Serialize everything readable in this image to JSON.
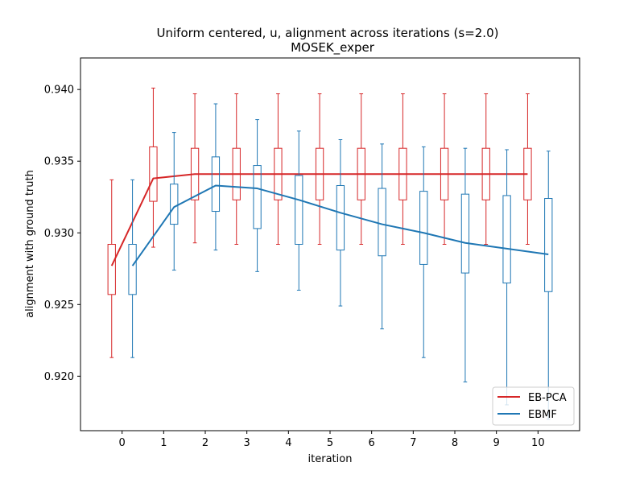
{
  "chart_data": {
    "type": "box",
    "title": "Uniform centered, u, alignment across iterations (s=2.0)",
    "subtitle": "MOSEK_exper",
    "xlabel": "iteration",
    "ylabel": "alignment with ground truth",
    "xlim": [
      -1,
      11
    ],
    "ylim": [
      0.9162,
      0.9422
    ],
    "x_ticks": [
      0,
      1,
      2,
      3,
      4,
      5,
      6,
      7,
      8,
      9,
      10
    ],
    "x_tick_labels": [
      "0",
      "1",
      "2",
      "3",
      "4",
      "5",
      "6",
      "7",
      "8",
      "9",
      "10"
    ],
    "y_ticks": [
      0.92,
      0.925,
      0.93,
      0.935,
      0.94
    ],
    "y_tick_labels": [
      "0.920",
      "0.925",
      "0.930",
      "0.935",
      "0.940"
    ],
    "grid": false,
    "legend_position": "lower-right",
    "series": [
      {
        "name": "EB-PCA",
        "color": "#d62728",
        "offset": -0.25,
        "boxes": [
          {
            "x": 0,
            "whisker_low": 0.9213,
            "q1": 0.9257,
            "q3": 0.9292,
            "whisker_high": 0.9337,
            "mean": 0.9277
          },
          {
            "x": 1,
            "whisker_low": 0.929,
            "q1": 0.9322,
            "q3": 0.936,
            "whisker_high": 0.9401,
            "mean": 0.9338
          },
          {
            "x": 2,
            "whisker_low": 0.9293,
            "q1": 0.9323,
            "q3": 0.9359,
            "whisker_high": 0.9397,
            "mean": 0.9341
          },
          {
            "x": 3,
            "whisker_low": 0.9292,
            "q1": 0.9323,
            "q3": 0.9359,
            "whisker_high": 0.9397,
            "mean": 0.9341
          },
          {
            "x": 4,
            "whisker_low": 0.9292,
            "q1": 0.9323,
            "q3": 0.9359,
            "whisker_high": 0.9397,
            "mean": 0.9341
          },
          {
            "x": 5,
            "whisker_low": 0.9292,
            "q1": 0.9323,
            "q3": 0.9359,
            "whisker_high": 0.9397,
            "mean": 0.9341
          },
          {
            "x": 6,
            "whisker_low": 0.9292,
            "q1": 0.9323,
            "q3": 0.9359,
            "whisker_high": 0.9397,
            "mean": 0.9341
          },
          {
            "x": 7,
            "whisker_low": 0.9292,
            "q1": 0.9323,
            "q3": 0.9359,
            "whisker_high": 0.9397,
            "mean": 0.9341
          },
          {
            "x": 8,
            "whisker_low": 0.9292,
            "q1": 0.9323,
            "q3": 0.9359,
            "whisker_high": 0.9397,
            "mean": 0.9341
          },
          {
            "x": 9,
            "whisker_low": 0.9292,
            "q1": 0.9323,
            "q3": 0.9359,
            "whisker_high": 0.9397,
            "mean": 0.9341
          },
          {
            "x": 10,
            "whisker_low": 0.9292,
            "q1": 0.9323,
            "q3": 0.9359,
            "whisker_high": 0.9397,
            "mean": 0.9341
          }
        ]
      },
      {
        "name": "EBMF",
        "color": "#1f77b4",
        "offset": 0.25,
        "boxes": [
          {
            "x": 0,
            "whisker_low": 0.9213,
            "q1": 0.9257,
            "q3": 0.9292,
            "whisker_high": 0.9337,
            "mean": 0.9277
          },
          {
            "x": 1,
            "whisker_low": 0.9274,
            "q1": 0.9306,
            "q3": 0.9334,
            "whisker_high": 0.937,
            "mean": 0.9318
          },
          {
            "x": 2,
            "whisker_low": 0.9288,
            "q1": 0.9315,
            "q3": 0.9353,
            "whisker_high": 0.939,
            "mean": 0.9333
          },
          {
            "x": 3,
            "whisker_low": 0.9273,
            "q1": 0.9303,
            "q3": 0.9347,
            "whisker_high": 0.9379,
            "mean": 0.9331
          },
          {
            "x": 4,
            "whisker_low": 0.926,
            "q1": 0.9292,
            "q3": 0.934,
            "whisker_high": 0.9371,
            "mean": 0.9323
          },
          {
            "x": 5,
            "whisker_low": 0.9249,
            "q1": 0.9288,
            "q3": 0.9333,
            "whisker_high": 0.9365,
            "mean": 0.9314
          },
          {
            "x": 6,
            "whisker_low": 0.9233,
            "q1": 0.9284,
            "q3": 0.9331,
            "whisker_high": 0.9362,
            "mean": 0.9306
          },
          {
            "x": 7,
            "whisker_low": 0.9213,
            "q1": 0.9278,
            "q3": 0.9329,
            "whisker_high": 0.936,
            "mean": 0.93
          },
          {
            "x": 8,
            "whisker_low": 0.9196,
            "q1": 0.9272,
            "q3": 0.9327,
            "whisker_high": 0.9359,
            "mean": 0.9293
          },
          {
            "x": 9,
            "whisker_low": 0.918,
            "q1": 0.9265,
            "q3": 0.9326,
            "whisker_high": 0.9358,
            "mean": 0.9289
          },
          {
            "x": 10,
            "whisker_low": 0.917,
            "q1": 0.9259,
            "q3": 0.9324,
            "whisker_high": 0.9357,
            "mean": 0.9285
          }
        ]
      }
    ]
  }
}
